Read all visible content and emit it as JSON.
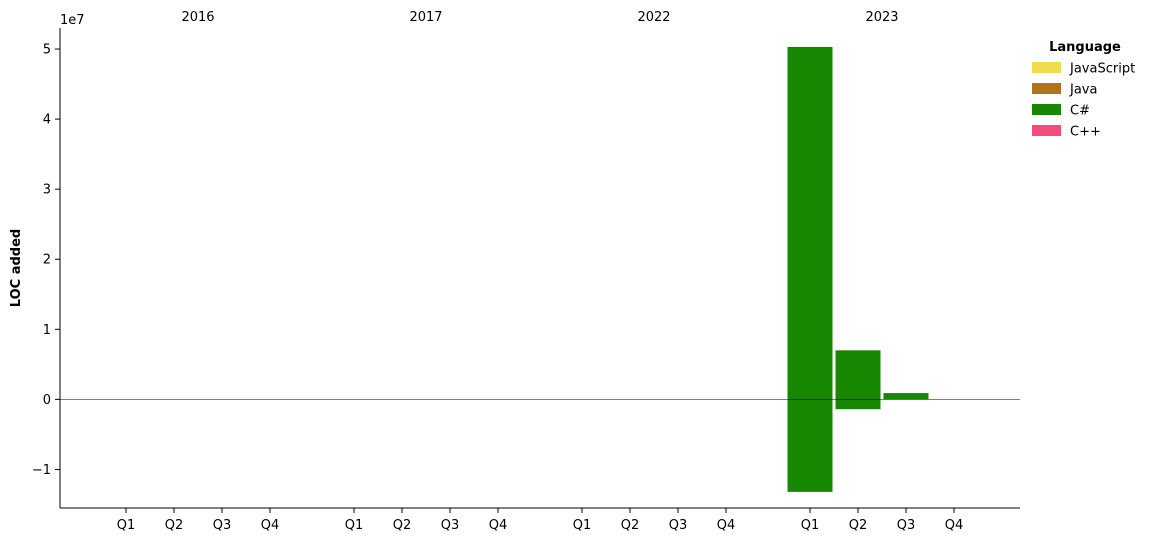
{
  "chart_data": {
    "type": "bar",
    "ylabel": "LOC added",
    "y_offset_label": "1e7",
    "y_scale": 10000000,
    "ylim": [
      -15500000,
      53000000
    ],
    "y_ticks": [
      {
        "value": -10000000,
        "label": "−1"
      },
      {
        "value": 0,
        "label": "0"
      },
      {
        "value": 10000000,
        "label": "1"
      },
      {
        "value": 20000000,
        "label": "2"
      },
      {
        "value": 30000000,
        "label": "3"
      },
      {
        "value": 40000000,
        "label": "4"
      },
      {
        "value": 50000000,
        "label": "5"
      }
    ],
    "years": [
      "2016",
      "2017",
      "2022",
      "2023"
    ],
    "quarters": [
      "Q1",
      "Q2",
      "Q3",
      "Q4"
    ],
    "legend": {
      "title": "Language",
      "position": "top-right",
      "entries": [
        {
          "name": "JavaScript",
          "color": "#f0dc4e"
        },
        {
          "name": "Java",
          "color": "#b07219"
        },
        {
          "name": "C#",
          "color": "#178600"
        },
        {
          "name": "C++",
          "color": "#f34b7d"
        }
      ]
    },
    "bars": [
      {
        "year": "2023",
        "quarter": "Q1",
        "language": "C#",
        "positive": 50300000,
        "negative": -13200000
      },
      {
        "year": "2023",
        "quarter": "Q2",
        "language": "C#",
        "positive": 7000000,
        "negative": -1400000
      },
      {
        "year": "2023",
        "quarter": "Q3",
        "language": "C#",
        "positive": 900000,
        "negative": 0
      }
    ],
    "zero_line": true,
    "grid": false
  }
}
